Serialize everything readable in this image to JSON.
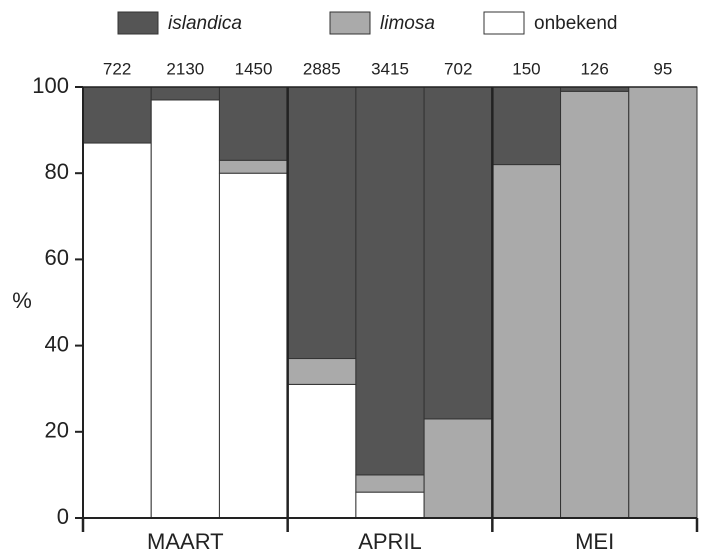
{
  "chart_data": {
    "type": "stacked_bar_100",
    "categories": [
      722,
      2130,
      1450,
      2885,
      3415,
      702,
      150,
      126,
      95
    ],
    "groups": [
      "MAART",
      "APRIL",
      "MEI"
    ],
    "ylabel": "%",
    "ylim": [
      0,
      100
    ],
    "yticks": [
      0,
      20,
      40,
      60,
      80,
      100
    ],
    "series": [
      {
        "name": "islandica",
        "color": "#555555",
        "values": [
          13,
          3,
          17,
          63,
          90,
          77,
          18,
          1,
          0
        ]
      },
      {
        "name": "limosa",
        "color": "#aaaaaa",
        "values": [
          0,
          0,
          3,
          6,
          4,
          23,
          82,
          99,
          100
        ]
      },
      {
        "name": "onbekend",
        "color": "#ffffff",
        "values": [
          87,
          97,
          80,
          31,
          6,
          0,
          0,
          0,
          0
        ]
      }
    ]
  }
}
